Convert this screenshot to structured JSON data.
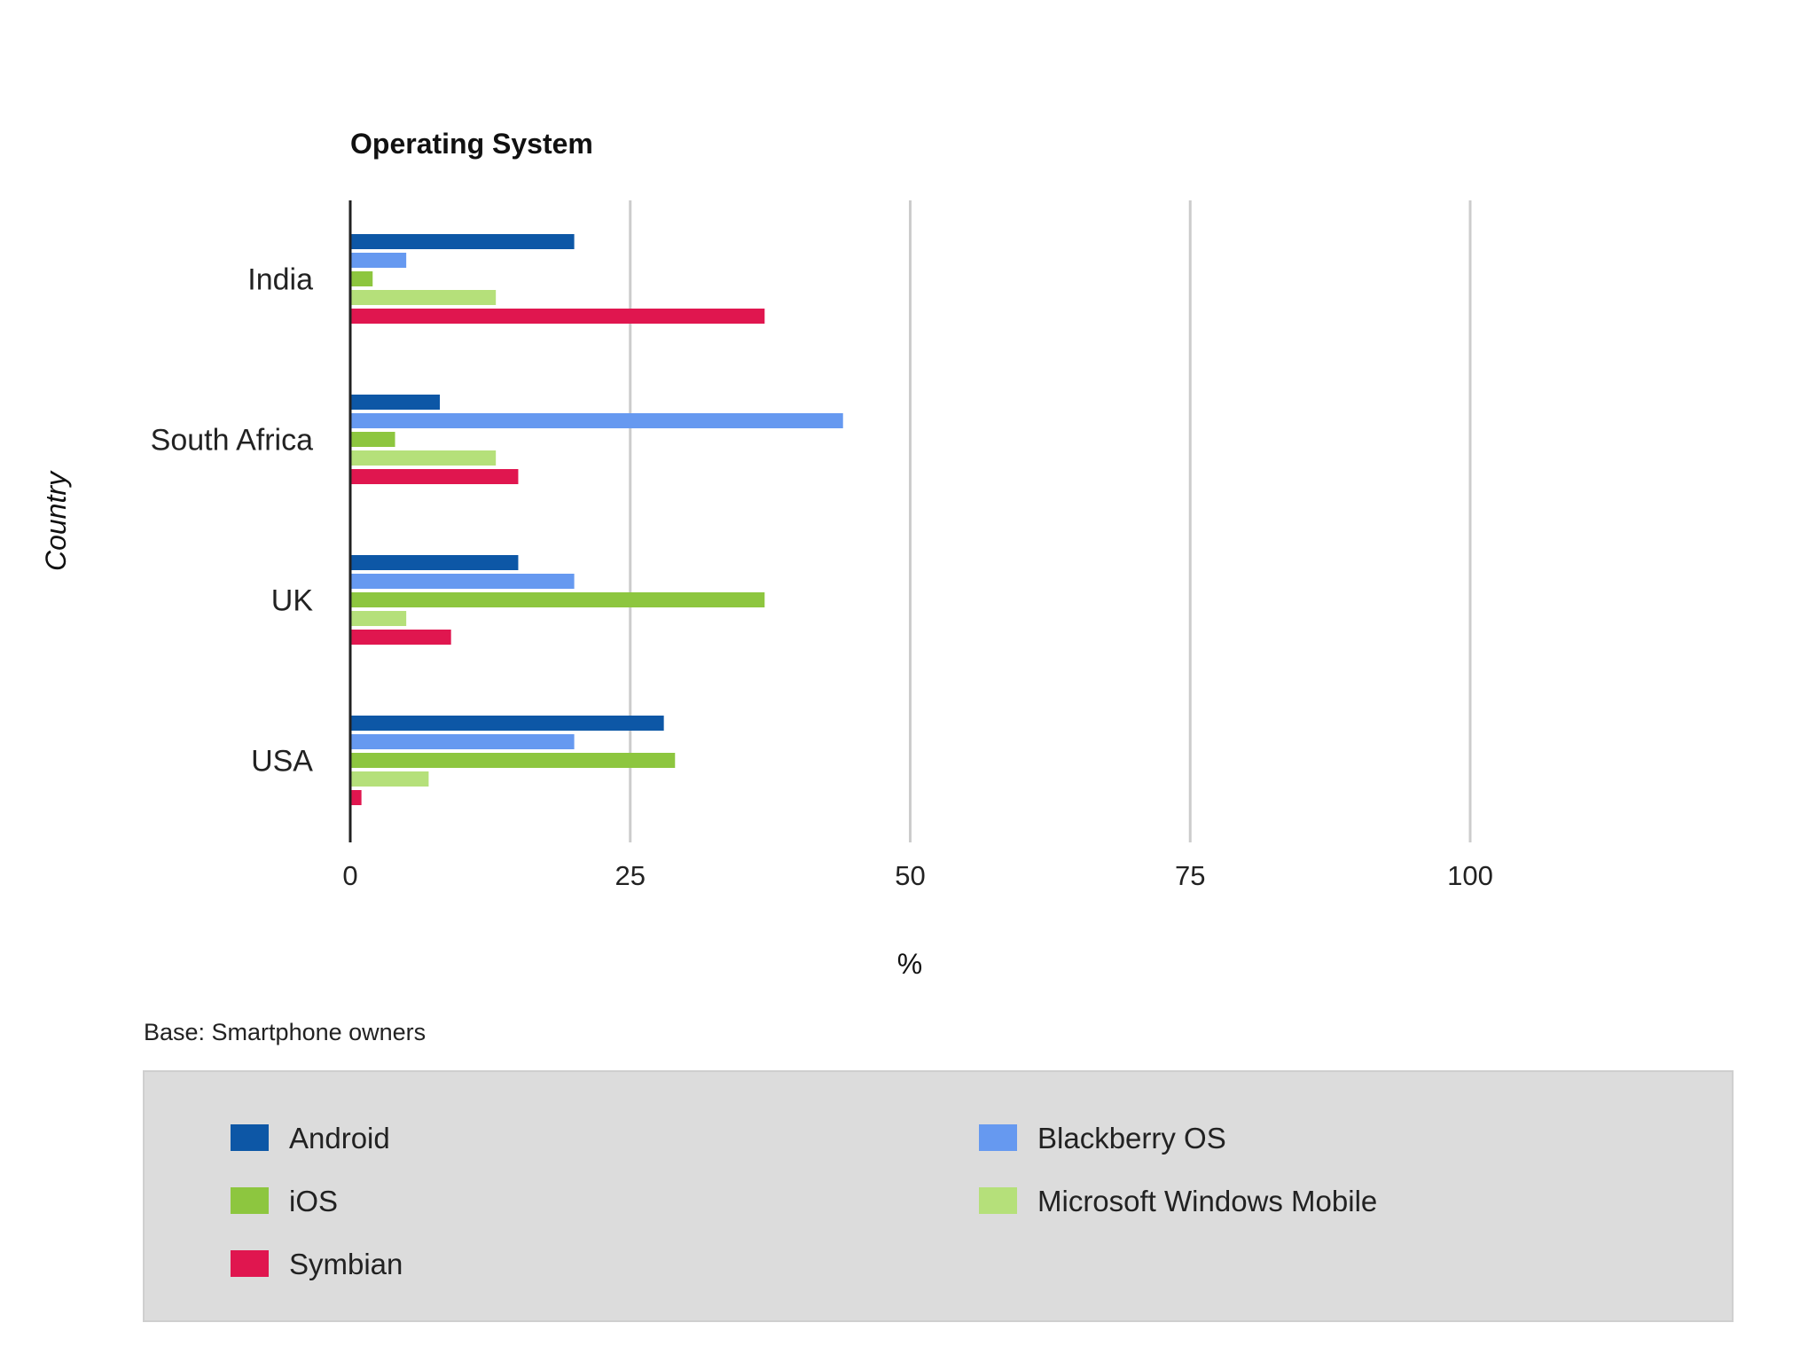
{
  "chart_data": {
    "type": "bar",
    "orientation": "horizontal",
    "title": "Operating System",
    "ylabel": "Country",
    "xlabel": "%",
    "note": "Base: Smartphone owners",
    "xlim": [
      0,
      100
    ],
    "xticks": [
      0,
      25,
      50,
      75,
      100
    ],
    "grid": true,
    "legend_position": "bottom",
    "categories": [
      "India",
      "South Africa",
      "UK",
      "USA"
    ],
    "series": [
      {
        "name": "Android",
        "color": "#0d57a6",
        "values": [
          20,
          8,
          15,
          28
        ]
      },
      {
        "name": "Blackberry OS",
        "color": "#6699f0",
        "values": [
          5,
          44,
          20,
          20
        ]
      },
      {
        "name": "iOS",
        "color": "#8dc63f",
        "values": [
          2,
          4,
          37,
          29
        ]
      },
      {
        "name": "Microsoft Windows Mobile",
        "color": "#b5e07a",
        "values": [
          13,
          13,
          5,
          7
        ]
      },
      {
        "name": "Symbian",
        "color": "#e0164f",
        "values": [
          37,
          15,
          9,
          1
        ]
      }
    ]
  }
}
